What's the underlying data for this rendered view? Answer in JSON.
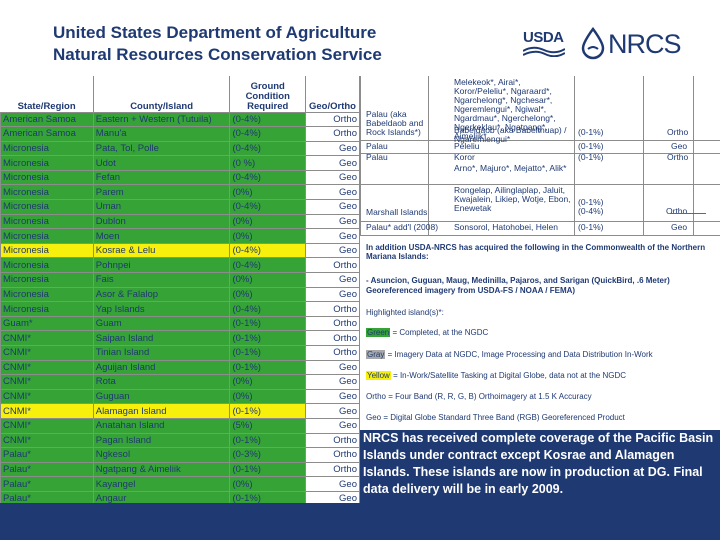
{
  "header": {
    "title_line1": "United States Department of Agriculture",
    "title_line2": "Natural Resources Conservation Service",
    "usda_logo_text": "USDA",
    "nrcs_logo_text": "NRCS"
  },
  "table": {
    "headers": {
      "state": "State/Region",
      "county": "County/Island",
      "ground": "Ground Condition Required",
      "geo": "Geo/Ortho"
    },
    "rows": [
      {
        "state": "American Samoa",
        "county": "Eastern + Western (Tutuila)",
        "ground": "(0-4%)",
        "geo": "Ortho",
        "color": "g"
      },
      {
        "state": "American Samoa",
        "county": "Manu'a",
        "ground": "(0-4%)",
        "geo": "Ortho",
        "color": "g"
      },
      {
        "state": "Micronesia",
        "county": "Pata, Tol, Polle",
        "ground": "(0-4%)",
        "geo": "Geo",
        "color": "g"
      },
      {
        "state": "Micronesia",
        "county": "Udot",
        "ground": "(0 %)",
        "geo": "Geo",
        "color": "g"
      },
      {
        "state": "Micronesia",
        "county": "Fefan",
        "ground": "(0-4%)",
        "geo": "Geo",
        "color": "g"
      },
      {
        "state": "Micronesia",
        "county": "Parem",
        "ground": "(0%)",
        "geo": "Geo",
        "color": "g"
      },
      {
        "state": "Micronesia",
        "county": "Uman",
        "ground": "(0-4%)",
        "geo": "Geo",
        "color": "g"
      },
      {
        "state": "Micronesia",
        "county": "Dublon",
        "ground": "(0%)",
        "geo": "Geo",
        "color": "g"
      },
      {
        "state": "Micronesia",
        "county": "Moen",
        "ground": "(0%)",
        "geo": "Geo",
        "color": "g"
      },
      {
        "state": "Micronesia",
        "county": "Kosrae & Lelu",
        "ground": "(0-4%)",
        "geo": "Geo",
        "color": "y"
      },
      {
        "state": "Micronesia",
        "county": "Pohnpei",
        "ground": "(0-4%)",
        "geo": "Ortho",
        "color": "g"
      },
      {
        "state": "Micronesia",
        "county": "Fais",
        "ground": "(0%)",
        "geo": "Geo",
        "color": "g"
      },
      {
        "state": "Micronesia",
        "county": "Asor & Falalop",
        "ground": "(0%)",
        "geo": "Geo",
        "color": "g"
      },
      {
        "state": "Micronesia",
        "county": "Yap Islands",
        "ground": "(0-4%)",
        "geo": "Ortho",
        "color": "g"
      },
      {
        "state": "Guam*",
        "county": "Guam",
        "ground": "(0-1%)",
        "geo": "Ortho",
        "color": "g"
      },
      {
        "state": "CNMI*",
        "county": "Saipan Island",
        "ground": "(0-1%)",
        "geo": "Ortho",
        "color": "g"
      },
      {
        "state": "CNMI*",
        "county": "Tinian Island",
        "ground": "(0-1%)",
        "geo": "Ortho",
        "color": "g"
      },
      {
        "state": "CNMI*",
        "county": "Aguijan Island",
        "ground": "(0-1%)",
        "geo": "Geo",
        "color": "g"
      },
      {
        "state": "CNMI*",
        "county": "Rota",
        "ground": "(0%)",
        "geo": "Geo",
        "color": "g"
      },
      {
        "state": "CNMI*",
        "county": "Guguan",
        "ground": "(0%)",
        "geo": "Geo",
        "color": "g"
      },
      {
        "state": "CNMI*",
        "county": "Alamagan Island",
        "ground": "(0-1%)",
        "geo": "Geo",
        "color": "y"
      },
      {
        "state": "CNMI*",
        "county": "Anatahan Island",
        "ground": "(5%)",
        "geo": "Geo",
        "color": "g"
      },
      {
        "state": "CNMI*",
        "county": "Pagan Island",
        "ground": "(0-1%)",
        "geo": "Ortho",
        "color": "g"
      },
      {
        "state": "Palau*",
        "county": "Ngkesol",
        "ground": "(0-3%)",
        "geo": "Ortho",
        "color": "g"
      },
      {
        "state": "Palau*",
        "county": "Ngatpang & Aimeliik",
        "ground": "(0-1%)",
        "geo": "Ortho",
        "color": "g"
      },
      {
        "state": "Palau*",
        "county": "Kayangel",
        "ground": "(0%)",
        "geo": "Geo",
        "color": "g"
      },
      {
        "state": "Palau*",
        "county": "Angaur",
        "ground": "(0-1%)",
        "geo": "Geo",
        "color": "g"
      }
    ]
  },
  "right_panel": {
    "r1_col1": "Palau (aka Babeldaob and Rock Islands*)",
    "r1_col2": "Melekeok*, Airai*, Koror/Peleliu*, Ngaraard*, Ngarchelong*, Ngchesar*, Ngeremlengui*, Ngiwal*, Ngardmau*, Ngerchelong*, Ngerkeklau*, Ngatpang*, Aimeliik*",
    "r1_col2_last": "Babeldaob (aka Babelthuap) / Ngaremlengui*",
    "r1_ground": "(0-1%)",
    "r1_geo": "Ortho",
    "r2_col1": "Palau",
    "r2_col2": "Peleliu",
    "r2_ground": "(0-1%)",
    "r2_geo": "Geo",
    "r3_col1": "Palau",
    "r3_col2": "Koror",
    "r3_ground": "(0-1%)",
    "r3_geo": "Ortho",
    "r4_col2": "Arno*, Majuro*, Mejatto*, Alik*",
    "r5_col1": "Marshall Islands",
    "r5_col2": "Rongelap, Ailinglaplap, Jaluit, Kwajalein, Likiep, Wotje, Ebon, Enewetak",
    "r5_ground1": "(0-1%)",
    "r5_ground2": "(0-4%)",
    "r5_geo": "Ortho",
    "r6_col1": "Palau* add'l (2008)",
    "r6_col2": "Sonsorol, Hatohobei, Helen",
    "r6_ground": "(0-1%)",
    "r6_geo": "Geo",
    "cnmi_heading": "In addition USDA-NRCS has acquired the following in the Commonwealth of the Northern Mariana Islands:",
    "cnmi_line1": "- Asuncion, Guguan, Maug, Medinilla, Pajaros, and Sarigan (QuickBird, .6 Meter)",
    "cnmi_line2": "Georeferenced imagery from USDA-FS / NOAA / FEMA)",
    "highlighted": "Highlighted island(s)*:",
    "legend_green_key": "Green",
    "legend_green": " = Completed, at the NGDC",
    "legend_gray_key": "Gray",
    "legend_gray": " = Imagery Data at NGDC, Image Processing and Data Distribution In-Work",
    "legend_yellow_key": "Yellow",
    "legend_yellow": " = In-Work/Satellite Tasking at Digital Globe, data not at the NGDC",
    "legend_ortho": "Ortho = Four Band (R, R, G, B) Orthoimagery at 1.5 K Accuracy",
    "legend_geo": "Geo = Digital Globe Standard Three Band (RGB) Georeferenced Product"
  },
  "note": "NRCS has received complete coverage of the Pacific Basin Islands under contract except Kosrae and Alamagen Islands. These islands are now in production at DG. Final data delivery will be in early 2009.",
  "colors": {
    "navy": "#1f3a73",
    "green": "#36a336",
    "yellow": "#f7f00d"
  }
}
